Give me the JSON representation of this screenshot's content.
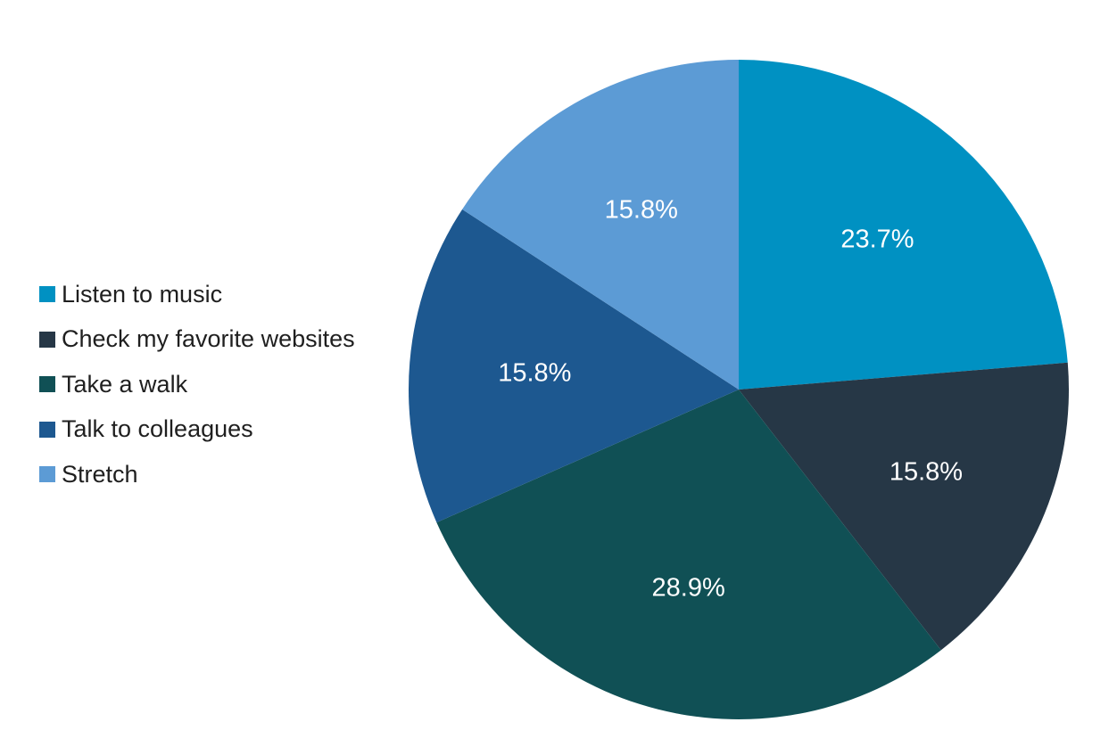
{
  "chart_data": {
    "type": "pie",
    "title": "",
    "legend_position": "left",
    "start_angle": "top",
    "direction": "clockwise",
    "slices": [
      {
        "label": "Listen to music",
        "value": 23.7,
        "value_label": "23.7%",
        "color": "#0091c2"
      },
      {
        "label": "Check my favorite websites",
        "value": 15.8,
        "value_label": "15.8%",
        "color": "#263746"
      },
      {
        "label": "Take a walk",
        "value": 28.9,
        "value_label": "28.9%",
        "color": "#105055"
      },
      {
        "label": "Talk to colleagues",
        "value": 15.8,
        "value_label": "15.8%",
        "color": "#1d5890"
      },
      {
        "label": "Stretch",
        "value": 15.8,
        "value_label": "15.8%",
        "color": "#5c9bd5"
      }
    ]
  }
}
